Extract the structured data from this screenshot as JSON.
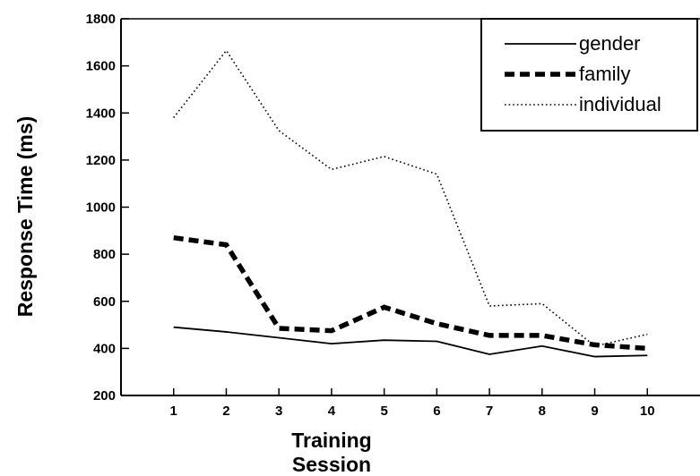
{
  "chart_data": {
    "type": "line",
    "title": "",
    "xlabel": "Training Session",
    "ylabel": "Response Time (ms)",
    "x": [
      1,
      2,
      3,
      4,
      5,
      6,
      7,
      8,
      9,
      10
    ],
    "xticks": [
      "1",
      "2",
      "3",
      "4",
      "5",
      "6",
      "7",
      "8",
      "9",
      "10"
    ],
    "xlim": [
      0,
      11
    ],
    "yticks": [
      "200",
      "400",
      "600",
      "800",
      "1000",
      "1200",
      "1400",
      "1600",
      "1800"
    ],
    "ylim": [
      200,
      1800
    ],
    "legend_position": "top-right",
    "grid": false,
    "series": [
      {
        "name": "gender",
        "style": "solid",
        "color": "#000000",
        "values": [
          490,
          470,
          445,
          420,
          435,
          430,
          375,
          410,
          365,
          370
        ]
      },
      {
        "name": "family",
        "style": "dashed",
        "color": "#000000",
        "values": [
          870,
          840,
          485,
          475,
          575,
          505,
          455,
          455,
          415,
          400
        ]
      },
      {
        "name": "individual",
        "style": "dotted",
        "color": "#000000",
        "values": [
          1380,
          1665,
          1325,
          1160,
          1215,
          1140,
          580,
          590,
          410,
          460
        ]
      }
    ]
  }
}
